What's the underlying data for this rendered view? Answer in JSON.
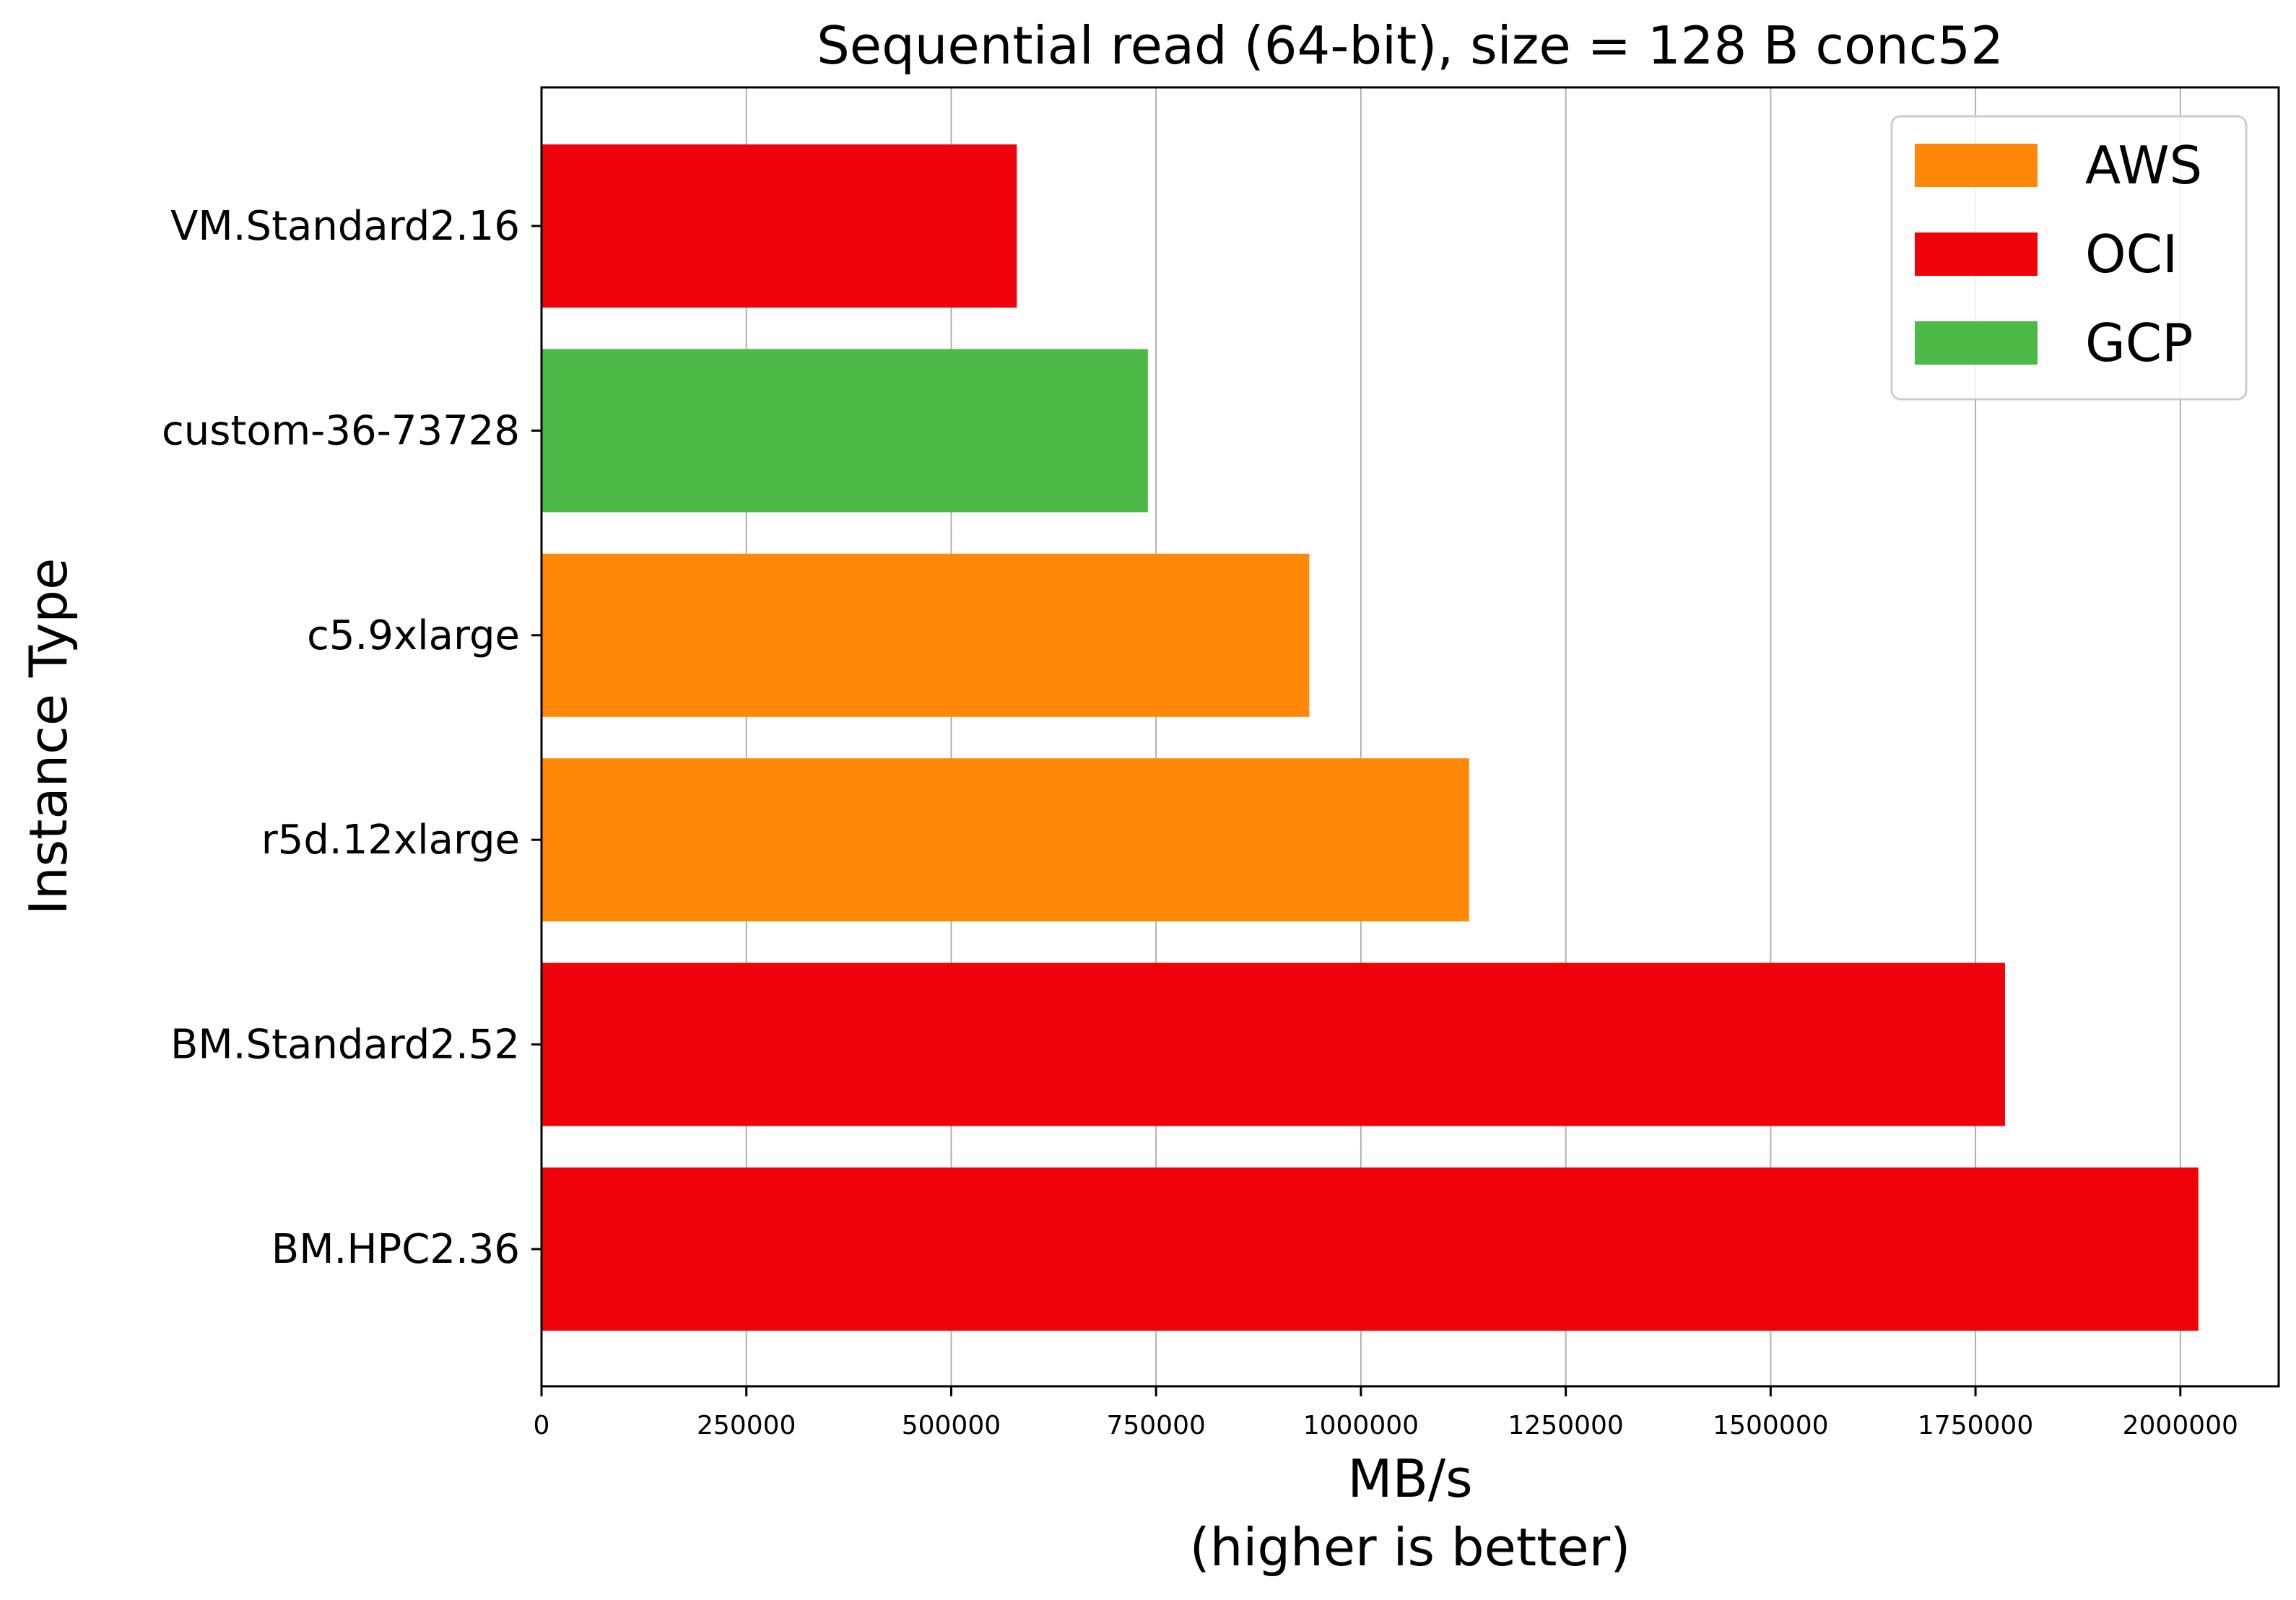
{
  "chart_data": {
    "type": "bar",
    "orientation": "horizontal",
    "title": "Sequential read (64-bit), size = 128 B conc52",
    "xlabel": "MB/s",
    "xlabel_note": "(higher is better)",
    "ylabel": "Instance Type",
    "xlim": [
      0,
      2120000
    ],
    "xticks": [
      0,
      250000,
      500000,
      750000,
      1000000,
      1250000,
      1500000,
      1750000,
      2000000
    ],
    "xtick_labels": [
      "0",
      "250000",
      "500000",
      "750000",
      "1000000",
      "1250000",
      "1500000",
      "1750000",
      "2000000"
    ],
    "grid": "x-axis vertical lines",
    "categories": [
      "VM.Standard2.16",
      "custom-36-73728",
      "c5.9xlarge",
      "r5d.12xlarge",
      "BM.Standard2.52",
      "BM.HPC2.36"
    ],
    "values": [
      580000,
      740000,
      937000,
      1132000,
      1786000,
      2022000
    ],
    "providers": [
      "OCI",
      "GCP",
      "AWS",
      "AWS",
      "OCI",
      "OCI"
    ],
    "legend": {
      "placement": "top-right",
      "entries": [
        {
          "label": "AWS",
          "color": "#ff8809"
        },
        {
          "label": "OCI",
          "color": "#f0020a"
        },
        {
          "label": "GCP",
          "color": "#4db947"
        }
      ]
    }
  }
}
